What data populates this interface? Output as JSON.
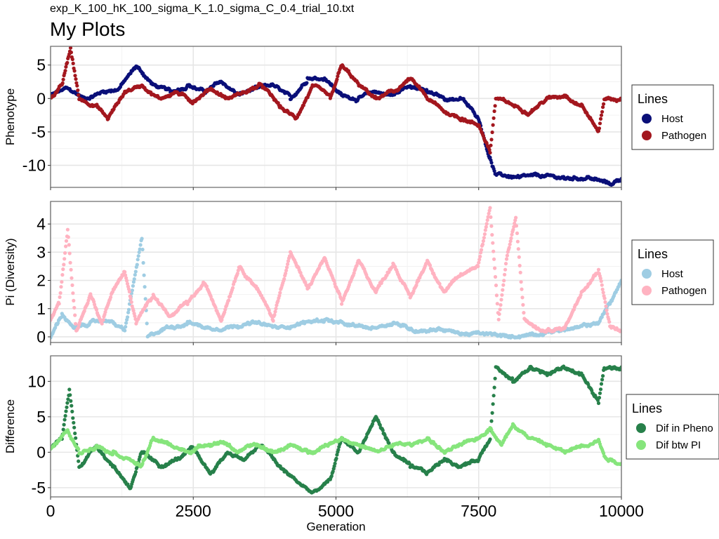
{
  "subtitle": "exp_K_100_hK_100_sigma_K_1.0_sigma_C_0.4_trial_10.txt",
  "title": "My Plots",
  "chart_data": [
    {
      "type": "scatter",
      "ylabel": "Phenotype",
      "xlim": [
        0,
        10000
      ],
      "ylim": [
        -13.3,
        7.8
      ],
      "x_ticks": [
        0,
        2500,
        5000,
        7500,
        10000
      ],
      "y_ticks": [
        5,
        0,
        -5,
        -10
      ],
      "y_tick_labels": [
        "5",
        "0",
        "-5",
        "-10"
      ],
      "grid": true,
      "legend": {
        "title": "Lines",
        "position": "right"
      },
      "series": [
        {
          "name": "Host",
          "color": "#0a0f78",
          "points": [
            [
              0,
              0.5
            ],
            [
              300,
              1.5
            ],
            [
              600,
              0
            ],
            [
              900,
              1
            ],
            [
              1200,
              1.5
            ],
            [
              1500,
              4.8
            ],
            [
              1800,
              2
            ],
            [
              2100,
              1
            ],
            [
              2400,
              2
            ],
            [
              2700,
              1
            ],
            [
              3000,
              2.5
            ],
            [
              3300,
              0.5
            ],
            [
              3600,
              1.5
            ],
            [
              3900,
              2
            ],
            [
              4200,
              0
            ],
            [
              4500,
              3
            ],
            [
              4800,
              3
            ],
            [
              5100,
              0.5
            ],
            [
              5400,
              0
            ],
            [
              5700,
              1
            ],
            [
              6000,
              0.5
            ],
            [
              6300,
              2
            ],
            [
              6600,
              1
            ],
            [
              6900,
              0
            ],
            [
              7200,
              0
            ],
            [
              7500,
              -3
            ],
            [
              7700,
              -9
            ],
            [
              7800,
              -11.5
            ],
            [
              8200,
              -11.8
            ],
            [
              8600,
              -11.7
            ],
            [
              9000,
              -11.9
            ],
            [
              9400,
              -11.8
            ],
            [
              9800,
              -12.8
            ],
            [
              10000,
              -12
            ]
          ]
        },
        {
          "name": "Pathogen",
          "color": "#a3171e",
          "points": [
            [
              0,
              0
            ],
            [
              200,
              2
            ],
            [
              350,
              7.5
            ],
            [
              500,
              0
            ],
            [
              800,
              -1
            ],
            [
              1000,
              -3
            ],
            [
              1300,
              1
            ],
            [
              1600,
              2
            ],
            [
              1900,
              0
            ],
            [
              2200,
              1
            ],
            [
              2500,
              -0.5
            ],
            [
              2800,
              1.5
            ],
            [
              3100,
              0
            ],
            [
              3400,
              1
            ],
            [
              3700,
              2
            ],
            [
              4000,
              -1
            ],
            [
              4300,
              -3
            ],
            [
              4600,
              2
            ],
            [
              4900,
              0
            ],
            [
              5100,
              5
            ],
            [
              5400,
              2
            ],
            [
              5700,
              0
            ],
            [
              6000,
              1
            ],
            [
              6300,
              3
            ],
            [
              6600,
              0
            ],
            [
              6900,
              -2
            ],
            [
              7200,
              -3
            ],
            [
              7500,
              -4
            ],
            [
              7700,
              -8
            ],
            [
              7800,
              0
            ],
            [
              8100,
              -1
            ],
            [
              8400,
              -2
            ],
            [
              8700,
              0
            ],
            [
              9000,
              0.5
            ],
            [
              9300,
              -1
            ],
            [
              9600,
              -5
            ],
            [
              9700,
              0
            ],
            [
              10000,
              -0.2
            ]
          ]
        }
      ]
    },
    {
      "type": "scatter",
      "ylabel": "Pi (Diversity)",
      "xlim": [
        0,
        10000
      ],
      "ylim": [
        -0.2,
        4.8
      ],
      "x_ticks": [
        0,
        2500,
        5000,
        7500,
        10000
      ],
      "y_ticks": [
        4,
        3,
        2,
        1,
        0
      ],
      "y_tick_labels": [
        "4",
        "3",
        "2",
        "1",
        "0"
      ],
      "grid": true,
      "legend": {
        "title": "Lines",
        "position": "right"
      },
      "series": [
        {
          "name": "Host",
          "color": "#9fcde3",
          "points": [
            [
              0,
              0
            ],
            [
              200,
              0.8
            ],
            [
              400,
              0.3
            ],
            [
              700,
              0.5
            ],
            [
              1000,
              0.6
            ],
            [
              1300,
              0.2
            ],
            [
              1600,
              3.5
            ],
            [
              1700,
              0
            ],
            [
              2000,
              0.3
            ],
            [
              2400,
              0.5
            ],
            [
              2800,
              0.3
            ],
            [
              3200,
              0.4
            ],
            [
              3600,
              0.5
            ],
            [
              4000,
              0.3
            ],
            [
              4400,
              0.5
            ],
            [
              4800,
              0.6
            ],
            [
              5200,
              0.4
            ],
            [
              5600,
              0.3
            ],
            [
              6000,
              0.5
            ],
            [
              6400,
              0.2
            ],
            [
              6800,
              0.3
            ],
            [
              7200,
              0.1
            ],
            [
              7600,
              0.1
            ],
            [
              8000,
              0
            ],
            [
              8400,
              0.1
            ],
            [
              8800,
              0.2
            ],
            [
              9200,
              0.3
            ],
            [
              9600,
              0.5
            ],
            [
              9800,
              1.2
            ],
            [
              10000,
              2
            ]
          ]
        },
        {
          "name": "Pathogen",
          "color": "#ffb3c1",
          "points": [
            [
              0,
              0.6
            ],
            [
              150,
              1.2
            ],
            [
              300,
              3.8
            ],
            [
              450,
              0.2
            ],
            [
              700,
              1.5
            ],
            [
              900,
              0.5
            ],
            [
              1100,
              1.7
            ],
            [
              1300,
              2.3
            ],
            [
              1500,
              0.5
            ],
            [
              1800,
              1.5
            ],
            [
              2100,
              0.7
            ],
            [
              2400,
              1.2
            ],
            [
              2700,
              1.9
            ],
            [
              3000,
              0.6
            ],
            [
              3300,
              2.5
            ],
            [
              3600,
              1.8
            ],
            [
              3900,
              0.6
            ],
            [
              4200,
              3.0
            ],
            [
              4500,
              1.7
            ],
            [
              4800,
              2.8
            ],
            [
              5100,
              1.2
            ],
            [
              5400,
              2.7
            ],
            [
              5700,
              1.6
            ],
            [
              6000,
              2.6
            ],
            [
              6300,
              1.4
            ],
            [
              6600,
              2.7
            ],
            [
              6900,
              1.6
            ],
            [
              7200,
              2.2
            ],
            [
              7500,
              2.6
            ],
            [
              7700,
              4.6
            ],
            [
              7850,
              0.6
            ],
            [
              8000,
              2.9
            ],
            [
              8150,
              4.2
            ],
            [
              8300,
              0.6
            ],
            [
              8600,
              0.2
            ],
            [
              9000,
              0.3
            ],
            [
              9300,
              1.6
            ],
            [
              9600,
              2.4
            ],
            [
              9800,
              0.4
            ],
            [
              10000,
              0.2
            ]
          ]
        }
      ]
    },
    {
      "type": "scatter",
      "xlabel": "Generation",
      "ylabel": "Difference",
      "xlim": [
        0,
        10000
      ],
      "ylim": [
        -6.3,
        13.6
      ],
      "x_ticks": [
        0,
        2500,
        5000,
        7500,
        10000
      ],
      "x_tick_labels": [
        "0",
        "2500",
        "5000",
        "7500",
        "10000"
      ],
      "y_ticks": [
        10,
        5,
        0,
        -5
      ],
      "y_tick_labels": [
        "10",
        "5",
        "0",
        "-5"
      ],
      "grid": true,
      "legend": {
        "title": "Lines",
        "position": "right"
      },
      "series": [
        {
          "name": "Dif in Pheno",
          "color": "#27804a",
          "points": [
            [
              0,
              0.5
            ],
            [
              200,
              2
            ],
            [
              330,
              8.8
            ],
            [
              500,
              -2
            ],
            [
              800,
              1
            ],
            [
              1100,
              -2
            ],
            [
              1400,
              -5
            ],
            [
              1600,
              0
            ],
            [
              1900,
              -2
            ],
            [
              2200,
              -1
            ],
            [
              2500,
              0.5
            ],
            [
              2800,
              -3
            ],
            [
              3100,
              0
            ],
            [
              3400,
              -1
            ],
            [
              3700,
              1
            ],
            [
              4000,
              -2
            ],
            [
              4300,
              -4
            ],
            [
              4600,
              -5.8
            ],
            [
              4900,
              -4
            ],
            [
              5100,
              2
            ],
            [
              5400,
              0
            ],
            [
              5700,
              5
            ],
            [
              6000,
              0
            ],
            [
              6300,
              -2
            ],
            [
              6600,
              -3
            ],
            [
              6900,
              -1
            ],
            [
              7200,
              -2
            ],
            [
              7500,
              -1
            ],
            [
              7700,
              2
            ],
            [
              7800,
              12
            ],
            [
              8100,
              10
            ],
            [
              8400,
              12
            ],
            [
              8700,
              11
            ],
            [
              9000,
              12
            ],
            [
              9300,
              11
            ],
            [
              9600,
              7
            ],
            [
              9700,
              12
            ],
            [
              10000,
              12
            ]
          ]
        },
        {
          "name": "Dif btw PI",
          "color": "#86e57c",
          "points": [
            [
              0,
              0.5
            ],
            [
              300,
              3
            ],
            [
              500,
              0
            ],
            [
              800,
              1
            ],
            [
              1100,
              0
            ],
            [
              1400,
              -1
            ],
            [
              1600,
              -2
            ],
            [
              1800,
              2
            ],
            [
              2100,
              1
            ],
            [
              2400,
              0
            ],
            [
              2700,
              1
            ],
            [
              3000,
              1.5
            ],
            [
              3300,
              0
            ],
            [
              3600,
              1
            ],
            [
              3900,
              0
            ],
            [
              4200,
              1
            ],
            [
              4500,
              0
            ],
            [
              4800,
              1
            ],
            [
              5100,
              2
            ],
            [
              5400,
              1
            ],
            [
              5700,
              0
            ],
            [
              6000,
              1
            ],
            [
              6300,
              1
            ],
            [
              6600,
              2
            ],
            [
              6900,
              0
            ],
            [
              7200,
              1
            ],
            [
              7500,
              2
            ],
            [
              7700,
              3.5
            ],
            [
              7900,
              1
            ],
            [
              8100,
              4
            ],
            [
              8400,
              2
            ],
            [
              8700,
              1
            ],
            [
              9000,
              0
            ],
            [
              9300,
              1
            ],
            [
              9600,
              1.8
            ],
            [
              9700,
              -0.5
            ],
            [
              10000,
              -1.6
            ]
          ]
        }
      ]
    }
  ]
}
